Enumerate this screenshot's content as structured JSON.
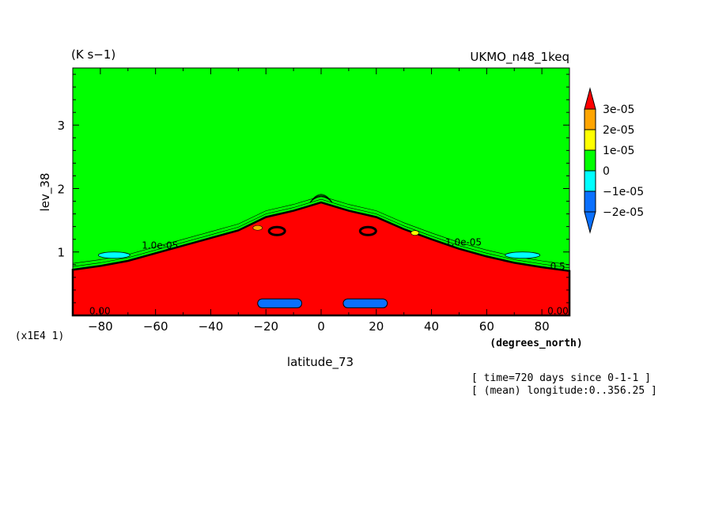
{
  "chart_data": {
    "type": "heatmap",
    "title_left": "(K s−1)",
    "title_right": "UKMO_n48_1keq",
    "xlabel": "latitude_73",
    "x_units": "(degrees_north)",
    "ylabel": "lev_38",
    "y_scale_note": "(x1E4 1)",
    "xlim": [
      -90,
      90
    ],
    "ylim": [
      0,
      3.9
    ],
    "x_ticks": [
      -80,
      -60,
      -40,
      -20,
      0,
      20,
      40,
      60,
      80
    ],
    "y_ticks": [
      1,
      2,
      3
    ],
    "colorbar": {
      "levels": [
        -2e-05,
        -1e-05,
        0,
        1e-05,
        2e-05,
        3e-05
      ],
      "labels": [
        "3e-05",
        "2e-05",
        "1e-05",
        "0",
        "−1e-05",
        "−2e-05"
      ],
      "colors": [
        "#0a70ff",
        "#00ffff",
        "#00ff00",
        "#ffff00",
        "#ffa500",
        "#ff0000"
      ]
    },
    "regions": {
      "background_value": 0,
      "lower_atmosphere_value": "> 3e-05",
      "negative_pockets": [
        {
          "lat_range": [
            -23,
            -7
          ],
          "lev_range": [
            0.12,
            0.26
          ],
          "value": "-2e-05"
        },
        {
          "lat_range": [
            8,
            24
          ],
          "lev_range": [
            0.12,
            0.26
          ],
          "value": "-2e-05"
        }
      ],
      "red_boundary": [
        [
          -90,
          0.72
        ],
        [
          -80,
          0.78
        ],
        [
          -70,
          0.86
        ],
        [
          -60,
          0.98
        ],
        [
          -50,
          1.1
        ],
        [
          -40,
          1.22
        ],
        [
          -30,
          1.34
        ],
        [
          -20,
          1.55
        ],
        [
          -10,
          1.65
        ],
        [
          0,
          1.78
        ],
        [
          10,
          1.65
        ],
        [
          20,
          1.55
        ],
        [
          30,
          1.36
        ],
        [
          40,
          1.2
        ],
        [
          50,
          1.05
        ],
        [
          60,
          0.93
        ],
        [
          70,
          0.83
        ],
        [
          80,
          0.76
        ],
        [
          90,
          0.7
        ]
      ]
    },
    "contour_labels": [
      "0.00",
      "0.00",
      "1.0e-05",
      "1.0e-05",
      "0.5"
    ]
  },
  "annotations": {
    "time": "[ time=720 days since 0-1-1 ]",
    "longitude": "[ (mean) longitude:0..356.25 ]"
  }
}
